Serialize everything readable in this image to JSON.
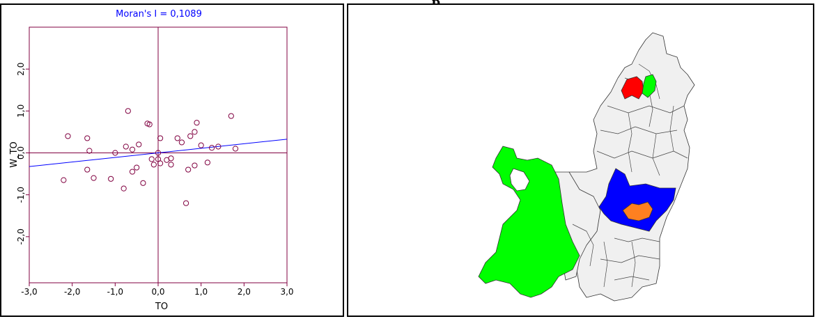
{
  "page": {
    "cropped_heading": "p                                    ,"
  },
  "colors": {
    "frame": "#800040",
    "regression": "#0000ff",
    "points": "#800040",
    "title": "#0000ff",
    "map_base": "#f0f0f0",
    "map_border": "#333333",
    "red": "#ff0000",
    "green": "#00ff00",
    "blue": "#0000ff",
    "orange": "#ff8020"
  },
  "chart_data": {
    "type": "scatter",
    "title": "Moran's I = 0,1089",
    "xlabel": "TO",
    "ylabel": "W_TO",
    "xlim": [
      -3.0,
      3.0
    ],
    "ylim": [
      -3.1,
      3.0
    ],
    "x_ticks": [
      -3.0,
      -2.0,
      -1.0,
      0.0,
      1.0,
      2.0,
      3.0
    ],
    "x_tick_labels": [
      "-3,0",
      "-2,0",
      "-1,0",
      "0,0",
      "1,0",
      "2,0",
      "3,0"
    ],
    "y_ticks": [
      -2.0,
      -1.0,
      0.0,
      1.0,
      2.0
    ],
    "y_tick_labels": [
      "-2,0",
      "-1,0",
      "0,0",
      "1,0",
      "2,0"
    ],
    "grid": false,
    "slope": 0.1089,
    "points": [
      {
        "x": -2.2,
        "y": -0.65
      },
      {
        "x": -2.1,
        "y": 0.4
      },
      {
        "x": -1.65,
        "y": 0.35
      },
      {
        "x": -1.65,
        "y": -0.4
      },
      {
        "x": -1.6,
        "y": 0.05
      },
      {
        "x": -1.5,
        "y": -0.6
      },
      {
        "x": -1.1,
        "y": -0.62
      },
      {
        "x": -1.0,
        "y": 0.0
      },
      {
        "x": -0.8,
        "y": -0.85
      },
      {
        "x": -0.75,
        "y": 0.15
      },
      {
        "x": -0.7,
        "y": 1.0
      },
      {
        "x": -0.6,
        "y": 0.08
      },
      {
        "x": -0.6,
        "y": -0.45
      },
      {
        "x": -0.5,
        "y": -0.35
      },
      {
        "x": -0.45,
        "y": 0.2
      },
      {
        "x": -0.35,
        "y": -0.72
      },
      {
        "x": -0.25,
        "y": 0.7
      },
      {
        "x": -0.2,
        "y": 0.68
      },
      {
        "x": -0.15,
        "y": -0.15
      },
      {
        "x": -0.1,
        "y": -0.28
      },
      {
        "x": 0.0,
        "y": -0.15
      },
      {
        "x": 0.0,
        "y": 0.0
      },
      {
        "x": 0.05,
        "y": 0.35
      },
      {
        "x": 0.05,
        "y": -0.25
      },
      {
        "x": 0.2,
        "y": -0.17
      },
      {
        "x": 0.3,
        "y": -0.13
      },
      {
        "x": 0.3,
        "y": -0.28
      },
      {
        "x": 0.45,
        "y": 0.35
      },
      {
        "x": 0.55,
        "y": 0.25
      },
      {
        "x": 0.65,
        "y": -1.2
      },
      {
        "x": 0.7,
        "y": -0.4
      },
      {
        "x": 0.75,
        "y": 0.4
      },
      {
        "x": 0.85,
        "y": 0.5
      },
      {
        "x": 0.85,
        "y": -0.3
      },
      {
        "x": 0.9,
        "y": 0.72
      },
      {
        "x": 1.0,
        "y": 0.18
      },
      {
        "x": 1.15,
        "y": -0.23
      },
      {
        "x": 1.25,
        "y": 0.12
      },
      {
        "x": 1.4,
        "y": 0.15
      },
      {
        "x": 1.7,
        "y": 0.88
      },
      {
        "x": 1.8,
        "y": 0.1
      }
    ]
  },
  "map": {
    "regions": [
      {
        "id": "red-1",
        "fill": "red"
      },
      {
        "id": "green-north",
        "fill": "green"
      },
      {
        "id": "green-west",
        "fill": "green"
      },
      {
        "id": "blue-ring",
        "fill": "blue"
      },
      {
        "id": "orange-core",
        "fill": "orange"
      }
    ]
  }
}
